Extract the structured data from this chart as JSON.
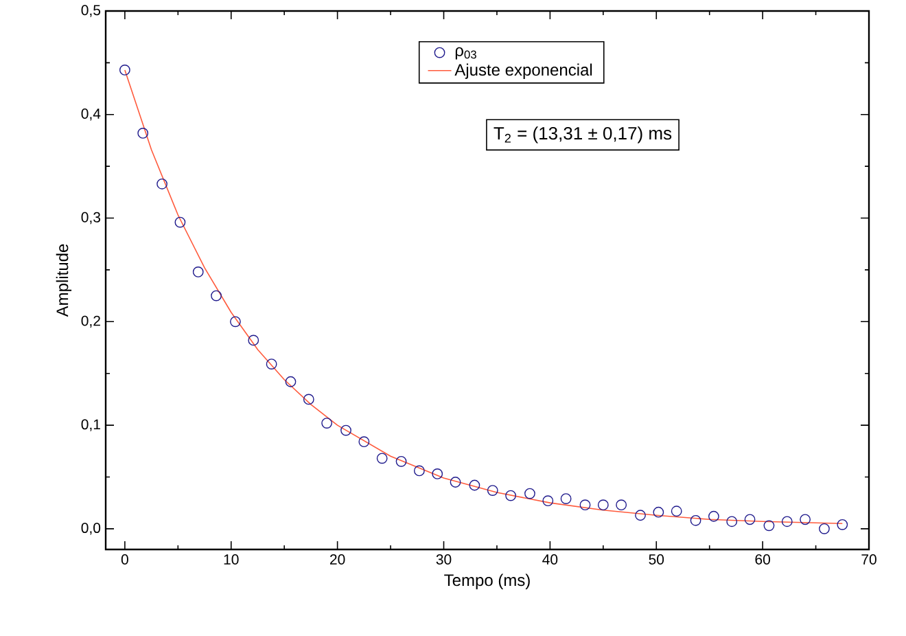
{
  "chart_data": {
    "type": "scatter",
    "xlabel": "Tempo (ms)",
    "ylabel": "Amplitude",
    "xlim": [
      -1.8,
      70
    ],
    "ylim": [
      -0.02,
      0.5
    ],
    "xticks": [
      0,
      10,
      20,
      30,
      40,
      50,
      60,
      70
    ],
    "yticks": [
      {
        "value": 0.0,
        "label": "0,0"
      },
      {
        "value": 0.1,
        "label": "0,1"
      },
      {
        "value": 0.2,
        "label": "0,2"
      },
      {
        "value": 0.3,
        "label": "0,3"
      },
      {
        "value": 0.4,
        "label": "0,4"
      },
      {
        "value": 0.5,
        "label": "0,5"
      }
    ],
    "legend": "top right",
    "annotations": [
      "T$_{2}$ = (13,31 ± 0,17) ms"
    ],
    "series": [
      {
        "name": "ρ$_{03}$",
        "marker": "circle",
        "color": "#1f1a8c",
        "x": [
          0,
          1.7,
          3.5,
          5.2,
          6.9,
          8.6,
          10.4,
          12.1,
          13.8,
          15.6,
          17.3,
          19.0,
          20.8,
          22.5,
          24.2,
          26.0,
          27.7,
          29.4,
          31.1,
          32.9,
          34.6,
          36.3,
          38.1,
          39.8,
          41.5,
          43.3,
          45.0,
          46.7,
          48.5,
          50.2,
          51.9,
          53.7,
          55.4,
          57.1,
          58.8,
          60.6,
          62.3,
          64.0,
          65.8,
          67.5
        ],
        "values": [
          0.443,
          0.382,
          0.333,
          0.296,
          0.248,
          0.225,
          0.2,
          0.182,
          0.159,
          0.142,
          0.125,
          0.102,
          0.095,
          0.084,
          0.068,
          0.065,
          0.056,
          0.053,
          0.045,
          0.042,
          0.037,
          0.032,
          0.034,
          0.027,
          0.029,
          0.023,
          0.023,
          0.023,
          0.013,
          0.016,
          0.017,
          0.008,
          0.012,
          0.007,
          0.009,
          0.003,
          0.007,
          0.009,
          0.0,
          0.004
        ]
      },
      {
        "name": "Ajuste exponencial",
        "type": "line",
        "color": "#ff5a3c",
        "line_style": "solid",
        "marker": "none",
        "x": [
          0,
          2.5,
          5,
          7.5,
          10,
          12.5,
          15,
          17.5,
          20,
          25,
          30,
          35,
          40,
          45,
          50,
          55,
          60,
          67.5
        ],
        "values": [
          0.443,
          0.366,
          0.303,
          0.252,
          0.209,
          0.173,
          0.144,
          0.12,
          0.1,
          0.07,
          0.049,
          0.035,
          0.025,
          0.018,
          0.013,
          0.009,
          0.007,
          0.005
        ]
      }
    ]
  }
}
